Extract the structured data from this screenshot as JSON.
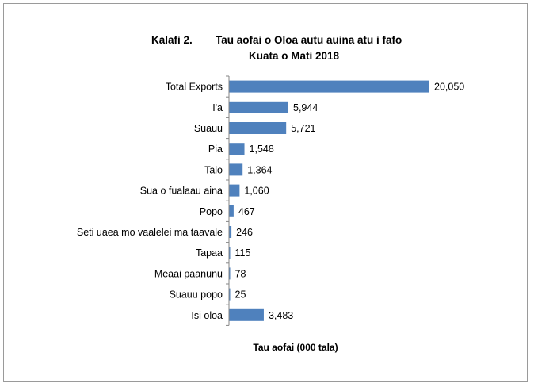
{
  "chart_data": {
    "type": "bar",
    "orientation": "horizontal",
    "title_line1_num": "Kalafi 2.",
    "title_line1_text": "Tau aofai o Oloa autu auina atu i fafo",
    "title_line2": "Kuata o Mati 2018",
    "xlabel": "Tau aofai (000 tala)",
    "categories": [
      "Total Exports",
      "I'a",
      "Suauu",
      "Pia",
      "Talo",
      "Sua o fualaau aina",
      "Popo",
      "Seti uaea mo vaalelei ma taavale",
      "Tapaa",
      "Meaai paanunu",
      "Suauu popo",
      "Isi oloa"
    ],
    "values": [
      20050,
      5944,
      5721,
      1548,
      1364,
      1060,
      467,
      246,
      115,
      78,
      25,
      3483
    ],
    "value_labels": [
      "20,050",
      "5,944",
      "5,721",
      "1,548",
      "1,364",
      "1,060",
      "467",
      "246",
      "115",
      "78",
      "25",
      "3,483"
    ],
    "xlim": [
      0,
      20050
    ],
    "bar_color": "#4f81bd",
    "grid": false,
    "legend": "none"
  }
}
